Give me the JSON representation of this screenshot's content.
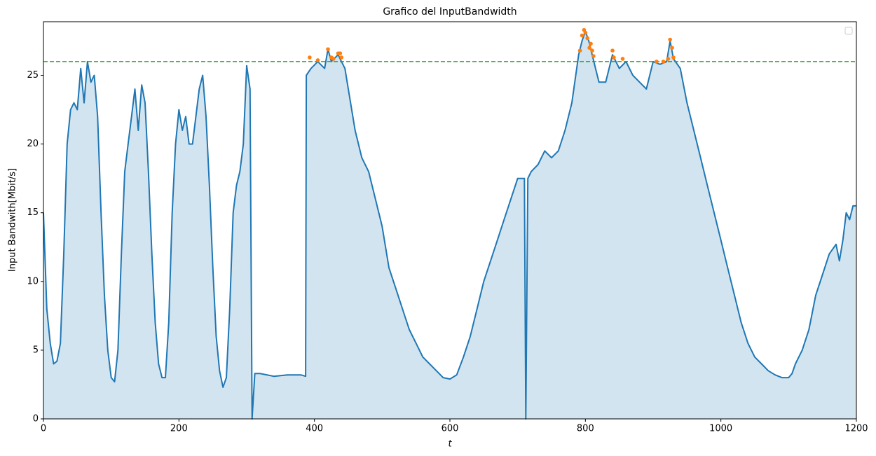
{
  "chart_data": {
    "type": "line",
    "title": "Grafico del InputBandwidth",
    "xlabel": "t",
    "ylabel": "Input Bandwith[Mbit/s]",
    "xlim": [
      0,
      1200
    ],
    "ylim": [
      0,
      28.9
    ],
    "xticks": [
      0,
      200,
      400,
      600,
      800,
      1000,
      1200
    ],
    "yticks": [
      0,
      5,
      10,
      15,
      20,
      25
    ],
    "fill_color": "#1f77b4",
    "fill_opacity": 0.2,
    "hline": {
      "value": 26,
      "color": "#2ca02c",
      "dashed": true
    },
    "legend": "upper right",
    "series": [
      {
        "type": "line",
        "color": "#1f77b4",
        "x": [
          0,
          5,
          10,
          15,
          20,
          25,
          30,
          35,
          40,
          45,
          50,
          55,
          60,
          65,
          70,
          75,
          80,
          85,
          90,
          95,
          100,
          105,
          110,
          115,
          120,
          125,
          130,
          135,
          140,
          145,
          150,
          155,
          160,
          165,
          170,
          175,
          180,
          185,
          190,
          195,
          200,
          205,
          210,
          215,
          220,
          225,
          230,
          235,
          240,
          245,
          250,
          255,
          260,
          265,
          270,
          275,
          280,
          285,
          290,
          295,
          300,
          305,
          308,
          312,
          320,
          340,
          360,
          380,
          387,
          388,
          395,
          405,
          415,
          420,
          425,
          435,
          440,
          445,
          450,
          460,
          470,
          480,
          490,
          500,
          510,
          520,
          530,
          540,
          550,
          560,
          570,
          580,
          590,
          600,
          610,
          620,
          630,
          640,
          650,
          660,
          670,
          680,
          690,
          700,
          710,
          712,
          715,
          720,
          730,
          740,
          750,
          760,
          770,
          780,
          790,
          795,
          800,
          805,
          810,
          815,
          820,
          830,
          840,
          850,
          860,
          870,
          880,
          890,
          900,
          910,
          920,
          925,
          930,
          940,
          950,
          960,
          970,
          980,
          990,
          1000,
          1010,
          1020,
          1030,
          1040,
          1050,
          1060,
          1070,
          1080,
          1090,
          1100,
          1105,
          1110,
          1120,
          1130,
          1140,
          1150,
          1160,
          1170,
          1175,
          1180,
          1185,
          1190,
          1195,
          1200
        ],
        "values": [
          15,
          8,
          5.5,
          4,
          4.2,
          5.5,
          12,
          20,
          22.5,
          23,
          22.5,
          25.5,
          23,
          26,
          24.5,
          25,
          22,
          15,
          9,
          5,
          3,
          2.7,
          5,
          12,
          18,
          20,
          22,
          24,
          21,
          24.3,
          23,
          18,
          12,
          7,
          4,
          3,
          3,
          7,
          15,
          20,
          22.5,
          21,
          22,
          20,
          20,
          22,
          24,
          25,
          22,
          17,
          11,
          6,
          3.5,
          2.3,
          3,
          8,
          15,
          17,
          18,
          20,
          25.7,
          24,
          0,
          3.3,
          3.3,
          3.1,
          3.2,
          3.2,
          3.1,
          25,
          25.5,
          26,
          25.5,
          26.9,
          26,
          26.5,
          26,
          25.5,
          24,
          21,
          19,
          18,
          16,
          14,
          11,
          9.5,
          8,
          6.5,
          5.5,
          4.5,
          4,
          3.5,
          3,
          2.9,
          3.2,
          4.5,
          6,
          8,
          10,
          11.5,
          13,
          14.5,
          16,
          17.5,
          17.5,
          0,
          17.5,
          18,
          18.5,
          19.5,
          19,
          19.5,
          21,
          23,
          26.5,
          27.5,
          28.2,
          27.5,
          26.5,
          25.5,
          24.5,
          24.5,
          26.5,
          25.5,
          26,
          25,
          24.5,
          24,
          26,
          25.8,
          26,
          27.5,
          26.2,
          25.5,
          23,
          21,
          19,
          17,
          15,
          13,
          11,
          9,
          7,
          5.5,
          4.5,
          4,
          3.5,
          3.2,
          3,
          3,
          3.3,
          4,
          5,
          6.5,
          9,
          10.5,
          12,
          12.7,
          11.5,
          13,
          15,
          14.5,
          15.5,
          15.5
        ]
      },
      {
        "type": "scatter",
        "color": "#ff7f0e",
        "x": [
          393,
          405,
          420,
          425,
          428,
          435,
          438,
          440,
          792,
          795,
          798,
          800,
          803,
          806,
          808,
          810,
          812,
          840,
          842,
          855,
          905,
          915,
          922,
          925,
          928,
          930
        ],
        "values": [
          26.3,
          26.1,
          26.9,
          26.3,
          26.2,
          26.6,
          26.6,
          26.3,
          26.8,
          27.9,
          28.3,
          28.1,
          27.7,
          27.0,
          27.3,
          26.8,
          26.4,
          26.8,
          26.3,
          26.2,
          26.0,
          26.0,
          26.2,
          27.6,
          27.0,
          26.3
        ]
      }
    ]
  }
}
